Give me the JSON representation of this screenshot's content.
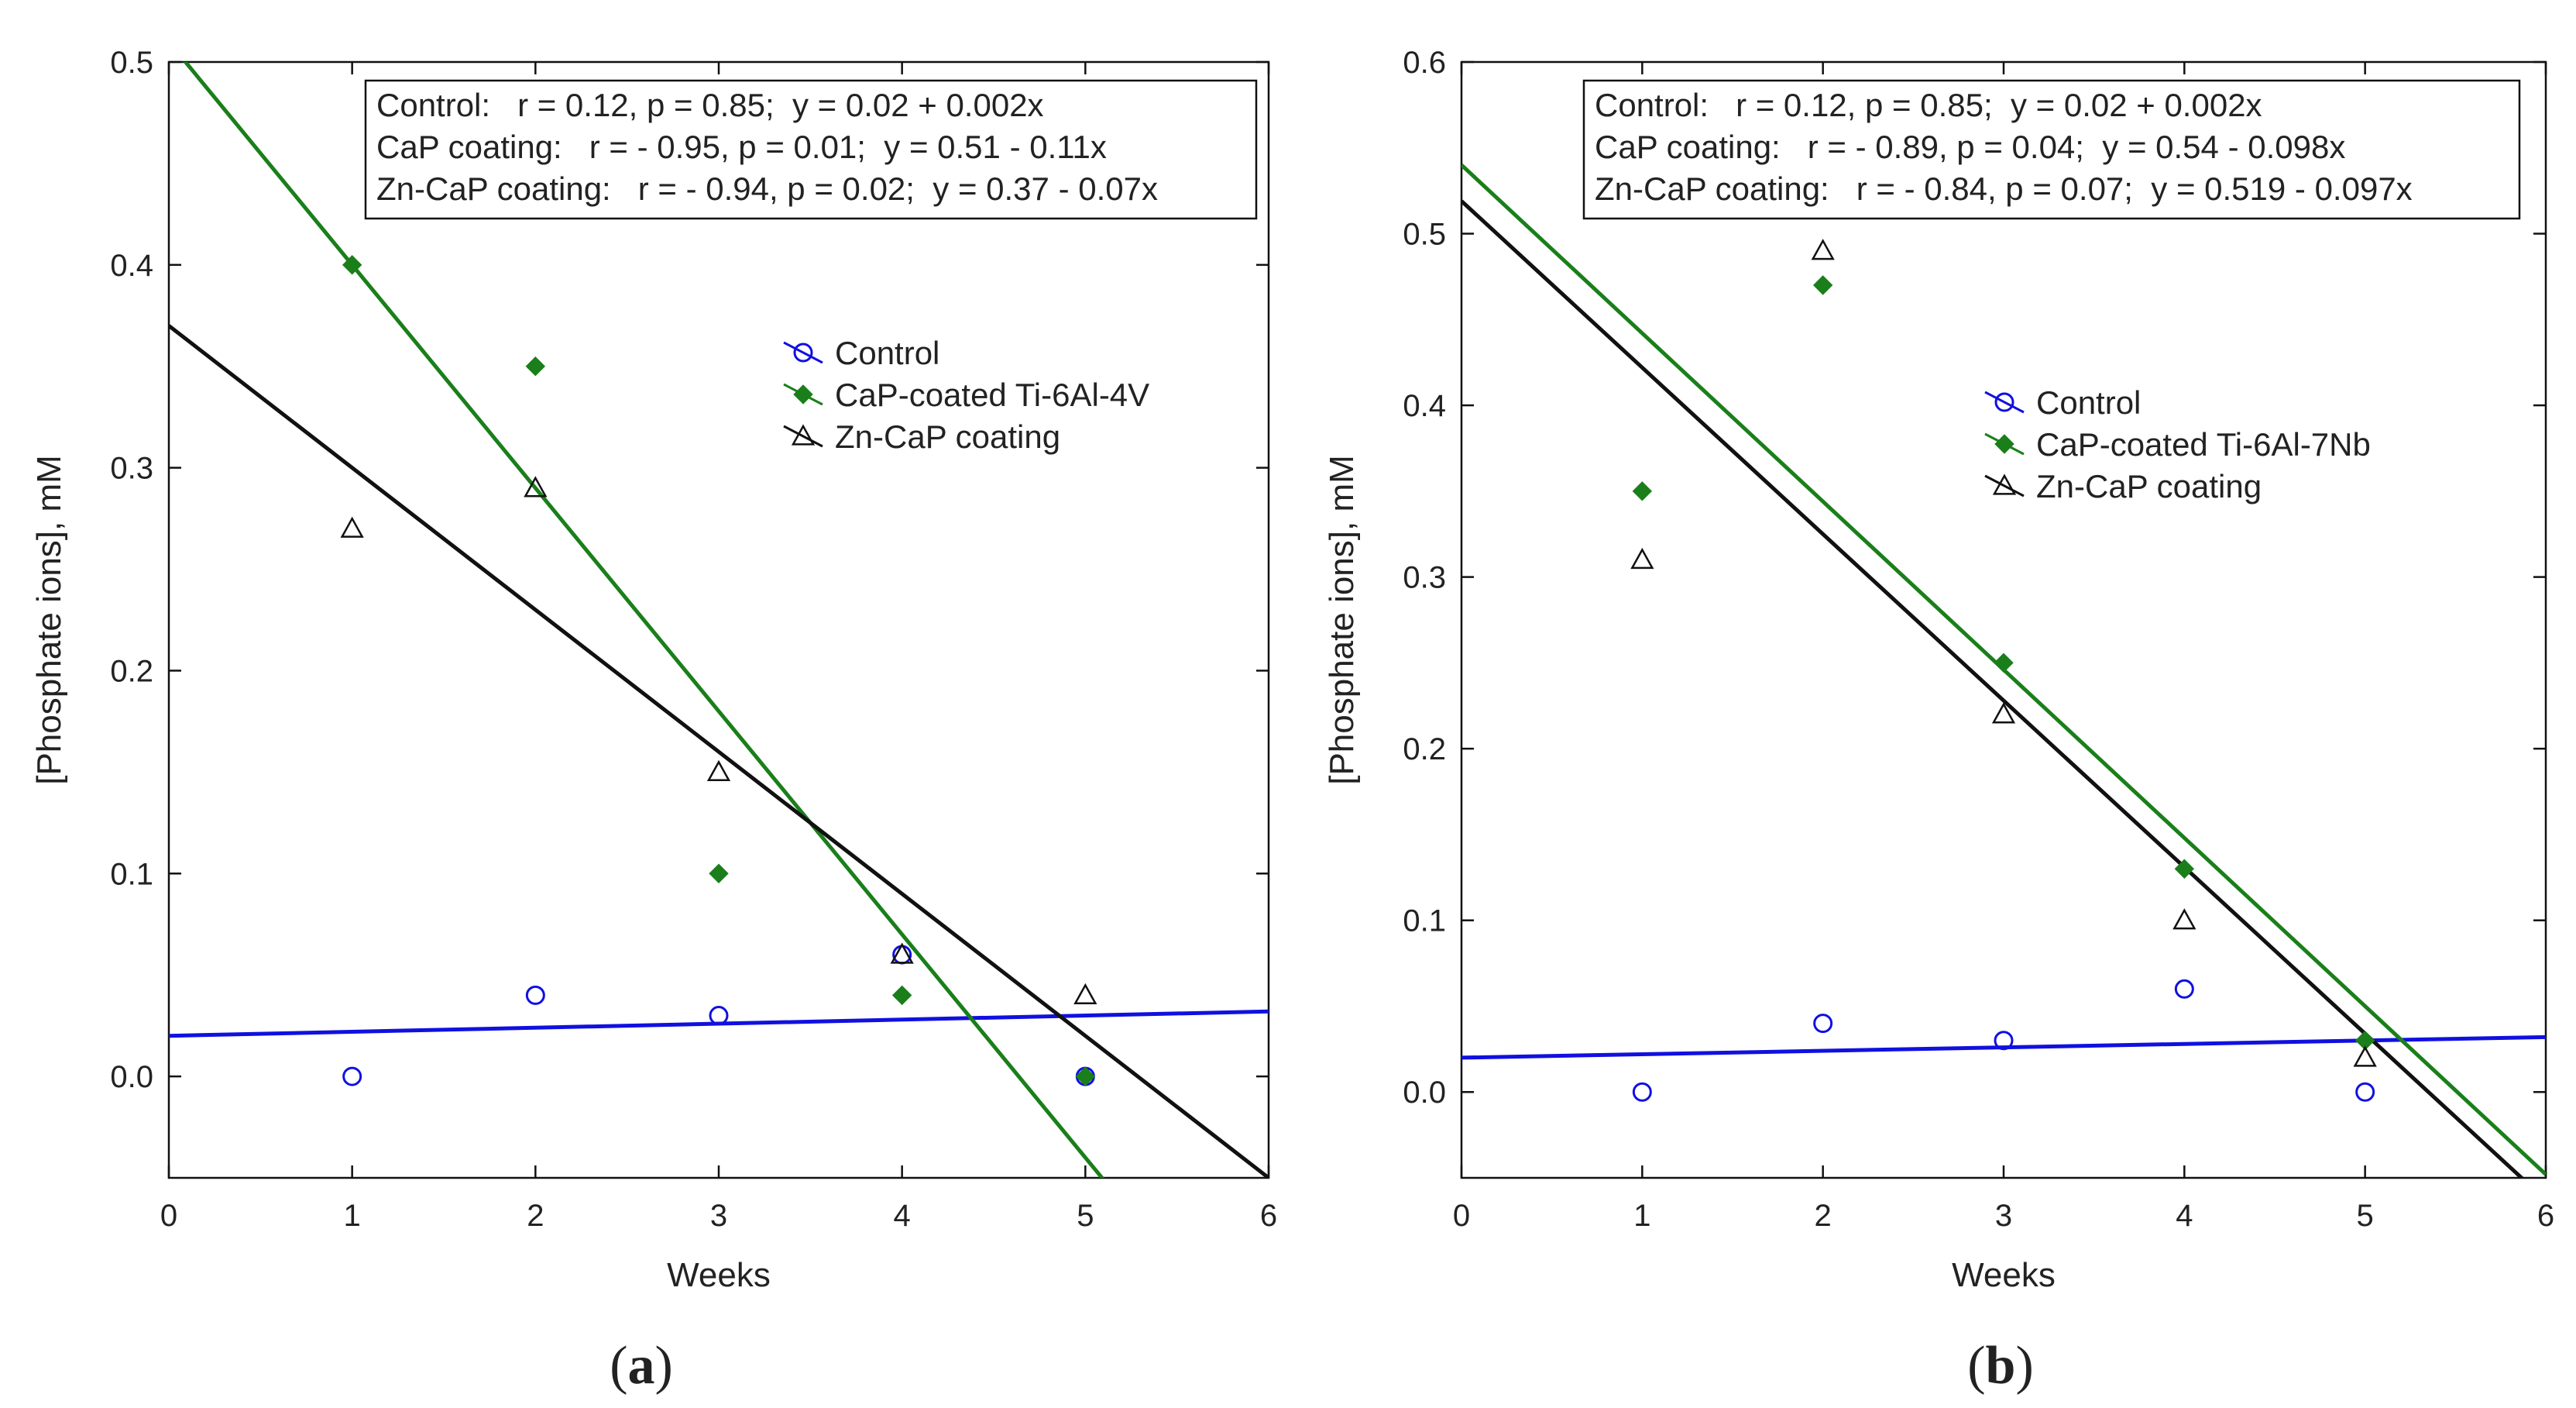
{
  "chart_data": [
    {
      "type": "scatter",
      "panel_label": "(a)",
      "panel_letter": "a",
      "xlabel": "Weeks",
      "ylabel": "[Phosphate ions], mM",
      "xlim": [
        0,
        6
      ],
      "ylim": [
        -0.05,
        0.5
      ],
      "xticks": [
        0,
        1,
        2,
        3,
        4,
        5,
        6
      ],
      "xtick_labels": [
        "0",
        "1",
        "2",
        "3",
        "4",
        "5",
        "6"
      ],
      "yticks": [
        0.0,
        0.1,
        0.2,
        0.3,
        0.4,
        0.5
      ],
      "ytick_labels": [
        "0.0",
        "0.1",
        "0.2",
        "0.3",
        "0.4",
        "0.5"
      ],
      "grid": false,
      "stats_box": [
        "Control:   r = 0.12, p = 0.85;  y = 0.02 + 0.002x",
        "CaP coating:   r = - 0.95, p = 0.01;  y = 0.51 - 0.11x",
        "Zn-CaP coating:   r = - 0.94, p = 0.02;  y = 0.37 - 0.07x"
      ],
      "series": [
        {
          "name": "Control",
          "color": "#1010e0",
          "marker": "open-circle",
          "x": [
            1,
            2,
            3,
            4,
            5
          ],
          "y": [
            0.0,
            0.04,
            0.03,
            0.06,
            0.0
          ],
          "fit": {
            "intercept": 0.02,
            "slope": 0.002
          }
        },
        {
          "name": "CaP-coated Ti-6Al-4V",
          "color": "#1a7f1a",
          "marker": "filled-diamond",
          "x": [
            1,
            2,
            3,
            4,
            5
          ],
          "y": [
            0.4,
            0.35,
            0.1,
            0.04,
            0.0
          ],
          "fit": {
            "intercept": 0.51,
            "slope": -0.11
          }
        },
        {
          "name": "Zn-CaP coating",
          "color": "#111111",
          "marker": "open-triangle",
          "x": [
            1,
            2,
            3,
            4,
            5
          ],
          "y": [
            0.27,
            0.29,
            0.15,
            0.06,
            0.04
          ],
          "fit": {
            "intercept": 0.37,
            "slope": -0.07
          }
        }
      ]
    },
    {
      "type": "scatter",
      "panel_label": "(b)",
      "panel_letter": "b",
      "xlabel": "Weeks",
      "ylabel": "[Phosphate ions], mM",
      "xlim": [
        0,
        6
      ],
      "ylim": [
        -0.05,
        0.6
      ],
      "xticks": [
        0,
        1,
        2,
        3,
        4,
        5,
        6
      ],
      "xtick_labels": [
        "0",
        "1",
        "2",
        "3",
        "4",
        "5",
        "6"
      ],
      "yticks": [
        0.0,
        0.1,
        0.2,
        0.3,
        0.4,
        0.5,
        0.6
      ],
      "ytick_labels": [
        "0.0",
        "0.1",
        "0.2",
        "0.3",
        "0.4",
        "0.5",
        "0.6"
      ],
      "grid": false,
      "stats_box": [
        "Control:   r = 0.12, p = 0.85;  y = 0.02 + 0.002x",
        "CaP coating:   r = - 0.89, p = 0.04;  y = 0.54 - 0.098x",
        "Zn-CaP coating:   r = - 0.84, p = 0.07;  y = 0.519 - 0.097x"
      ],
      "series": [
        {
          "name": "Control",
          "color": "#1010e0",
          "marker": "open-circle",
          "x": [
            1,
            2,
            3,
            4,
            5
          ],
          "y": [
            0.0,
            0.04,
            0.03,
            0.06,
            0.0
          ],
          "fit": {
            "intercept": 0.02,
            "slope": 0.002
          }
        },
        {
          "name": "CaP-coated Ti-6Al-7Nb",
          "color": "#1a7f1a",
          "marker": "filled-diamond",
          "x": [
            1,
            2,
            3,
            4,
            5
          ],
          "y": [
            0.35,
            0.47,
            0.25,
            0.13,
            0.03
          ],
          "fit": {
            "intercept": 0.54,
            "slope": -0.098
          }
        },
        {
          "name": "Zn-CaP coating",
          "color": "#111111",
          "marker": "open-triangle",
          "x": [
            1,
            2,
            3,
            4,
            5
          ],
          "y": [
            0.31,
            0.49,
            0.22,
            0.1,
            0.02
          ],
          "fit": {
            "intercept": 0.519,
            "slope": -0.097
          }
        }
      ]
    }
  ]
}
